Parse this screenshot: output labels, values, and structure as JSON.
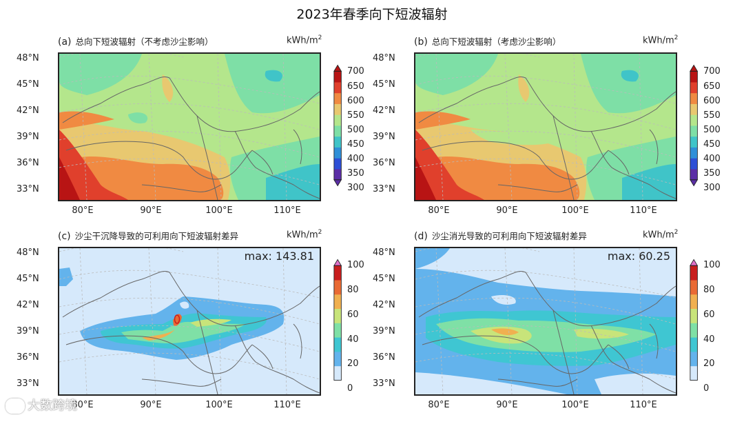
{
  "title": "2023年春季向下短波辐射",
  "watermark": "大数跨境",
  "colors": {
    "rad_levels": [
      "#5b2ea6",
      "#2d4fd6",
      "#2f8fd8",
      "#40c4c8",
      "#7edfa6",
      "#b4e68c",
      "#e8c870",
      "#f08a42",
      "#e0402c",
      "#b81414"
    ],
    "diff_levels": [
      "#d6e9fb",
      "#63b3ec",
      "#3fc6d2",
      "#7fe0a6",
      "#c8e47a",
      "#f0b050",
      "#e96a34",
      "#c81e1e"
    ]
  },
  "chart_data": [
    {
      "panel": "(a)",
      "type": "heatmap",
      "title": "总向下短波辐射（不考虑沙尘影响）",
      "unit": "kWh/m",
      "unit_sup": "2",
      "x_ticks": [
        "80°E",
        "90°E",
        "100°E",
        "110°E"
      ],
      "y_ticks": [
        "48°N",
        "45°N",
        "42°N",
        "39°N",
        "36°N",
        "33°N"
      ],
      "colorbar_ticks": [
        "700",
        "650",
        "600",
        "550",
        "500",
        "450",
        "400",
        "350",
        "300"
      ],
      "colorbar_range": [
        300,
        700
      ],
      "colorbar_extend": "both"
    },
    {
      "panel": "(b)",
      "type": "heatmap",
      "title": "总向下短波辐射（考虑沙尘影响）",
      "unit": "kWh/m",
      "unit_sup": "2",
      "x_ticks": [
        "80°E",
        "90°E",
        "100°E",
        "110°E"
      ],
      "y_ticks": [
        "48°N",
        "45°N",
        "42°N",
        "39°N",
        "36°N",
        "33°N"
      ],
      "colorbar_ticks": [
        "700",
        "650",
        "600",
        "550",
        "500",
        "450",
        "400",
        "350",
        "300"
      ],
      "colorbar_range": [
        300,
        700
      ],
      "colorbar_extend": "both"
    },
    {
      "panel": "(c)",
      "type": "heatmap",
      "title": "沙尘干沉降导致的可利用向下短波辐射差异",
      "unit": "kWh/m",
      "unit_sup": "2",
      "max_label": "max: 143.81",
      "max_value": 143.81,
      "x_ticks": [
        "80°E",
        "90°E",
        "100°E",
        "110°E"
      ],
      "y_ticks": [
        "48°N",
        "45°N",
        "42°N",
        "39°N",
        "36°N",
        "33°N"
      ],
      "colorbar_ticks": [
        "100",
        "80",
        "60",
        "40",
        "20",
        "0"
      ],
      "colorbar_range": [
        0,
        100
      ],
      "colorbar_extend": "max"
    },
    {
      "panel": "(d)",
      "type": "heatmap",
      "title": "沙尘消光导致的可利用向下短波辐射差异",
      "unit": "kWh/m",
      "unit_sup": "2",
      "max_label": "max: 60.25",
      "max_value": 60.25,
      "x_ticks": [
        "80°E",
        "90°E",
        "100°E",
        "110°E"
      ],
      "y_ticks": [
        "48°N",
        "45°N",
        "42°N",
        "39°N",
        "36°N",
        "33°N"
      ],
      "colorbar_ticks": [
        "100",
        "80",
        "60",
        "40",
        "20",
        "0"
      ],
      "colorbar_range": [
        0,
        100
      ],
      "colorbar_extend": "max"
    }
  ]
}
